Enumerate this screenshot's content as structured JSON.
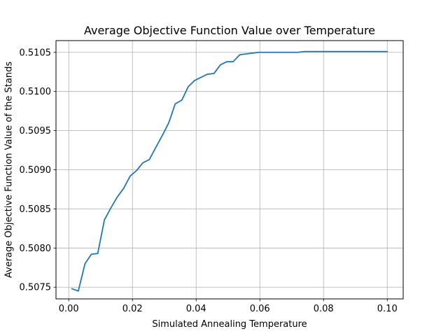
{
  "chart_data": {
    "type": "line",
    "title": "Average Objective Function Value over Temperature",
    "xlabel": "Simulated Annealing Temperature",
    "ylabel": "Average Objective Function Value of the Stands",
    "xlim": [
      -0.004,
      0.105
    ],
    "ylim": [
      0.50735,
      0.51065
    ],
    "x_ticks": [
      0.0,
      0.02,
      0.04,
      0.06,
      0.08,
      0.1
    ],
    "x_tick_labels": [
      "0.00",
      "0.02",
      "0.04",
      "0.06",
      "0.08",
      "0.10"
    ],
    "y_ticks": [
      0.5075,
      0.508,
      0.5085,
      0.509,
      0.5095,
      0.51,
      0.5105
    ],
    "y_tick_labels": [
      "0.5075",
      "0.5080",
      "0.5085",
      "0.5090",
      "0.5095",
      "0.5100",
      "0.5105"
    ],
    "grid": true,
    "series": [
      {
        "color": "#1f77b4",
        "x": [
          0.001,
          0.003,
          0.0051,
          0.0071,
          0.0091,
          0.0112,
          0.0132,
          0.0152,
          0.0172,
          0.0193,
          0.0213,
          0.0233,
          0.0253,
          0.0274,
          0.0294,
          0.0314,
          0.0334,
          0.0355,
          0.0375,
          0.0395,
          0.0415,
          0.0435,
          0.0456,
          0.0476,
          0.0496,
          0.0516,
          0.0537,
          0.0557,
          0.0577,
          0.0597,
          0.0618,
          0.0638,
          0.0658,
          0.0678,
          0.0698,
          0.0719,
          0.0739,
          0.0759,
          0.0779,
          0.08,
          0.082,
          0.084,
          0.086,
          0.0881,
          0.0901,
          0.0921,
          0.0941,
          0.0962,
          0.0982,
          0.1
        ],
        "y": [
          0.50748,
          0.50745,
          0.5078,
          0.50792,
          0.50793,
          0.50836,
          0.50851,
          0.50865,
          0.50876,
          0.50892,
          0.50899,
          0.50909,
          0.50913,
          0.50929,
          0.50944,
          0.5096,
          0.50984,
          0.50989,
          0.51006,
          0.51014,
          0.51018,
          0.51022,
          0.51023,
          0.51034,
          0.51038,
          0.51038,
          0.51047,
          0.51048,
          0.51049,
          0.5105,
          0.5105,
          0.5105,
          0.5105,
          0.5105,
          0.5105,
          0.5105,
          0.51051,
          0.51051,
          0.51051,
          0.51051,
          0.51051,
          0.51051,
          0.51051,
          0.51051,
          0.51051,
          0.51051,
          0.51051,
          0.51051,
          0.51051,
          0.51051
        ]
      }
    ]
  }
}
